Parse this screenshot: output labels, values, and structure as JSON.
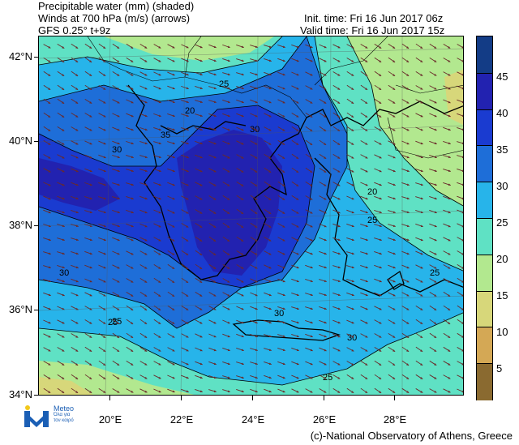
{
  "header": {
    "title_line1": "Precipitable water (mm) (shaded)",
    "title_line2": "Winds at 700 hPa (m/s) (arrows)",
    "model": "GFS 0.25° t+9z",
    "init_time": "Init. time: Fri 16 Jun 2017 06z",
    "valid_time": "Valid time: Fri 16 Jun 2017 15z"
  },
  "map": {
    "lat_labels": [
      "42°N",
      "40°N",
      "38°N",
      "36°N",
      "34°N"
    ],
    "lon_labels": [
      "20°E",
      "22°E",
      "24°E",
      "26°E",
      "28°E"
    ],
    "contour_labels": [
      "20",
      "25",
      "30",
      "35"
    ],
    "wind_direction": "northwest to southeast",
    "colors": {
      "lt5": "#8a6a30",
      "5_10": "#d4a855",
      "10_15": "#d7d77a",
      "15_20": "#b2e88f",
      "20_25": "#5fe1c4",
      "25_30": "#27b4ea",
      "30_35": "#1e6ed8",
      "35_40": "#1a3bd0",
      "40_45": "#2222b0",
      "ge45": "#133c86"
    }
  },
  "colorbar": {
    "labels": [
      "45",
      "40",
      "35",
      "30",
      "25",
      "20",
      "15",
      "10",
      "5"
    ],
    "colors": [
      "#133c86",
      "#2222b0",
      "#1a3bd0",
      "#1e6ed8",
      "#27b4ea",
      "#5fe1c4",
      "#b2e88f",
      "#d7d77a",
      "#d4a855",
      "#8a6a30"
    ]
  },
  "logo": {
    "name": "Meteo",
    "tagline": "Όλα για τον καιρό"
  },
  "credit": "(c)-National Observatory of Athens, Greece"
}
